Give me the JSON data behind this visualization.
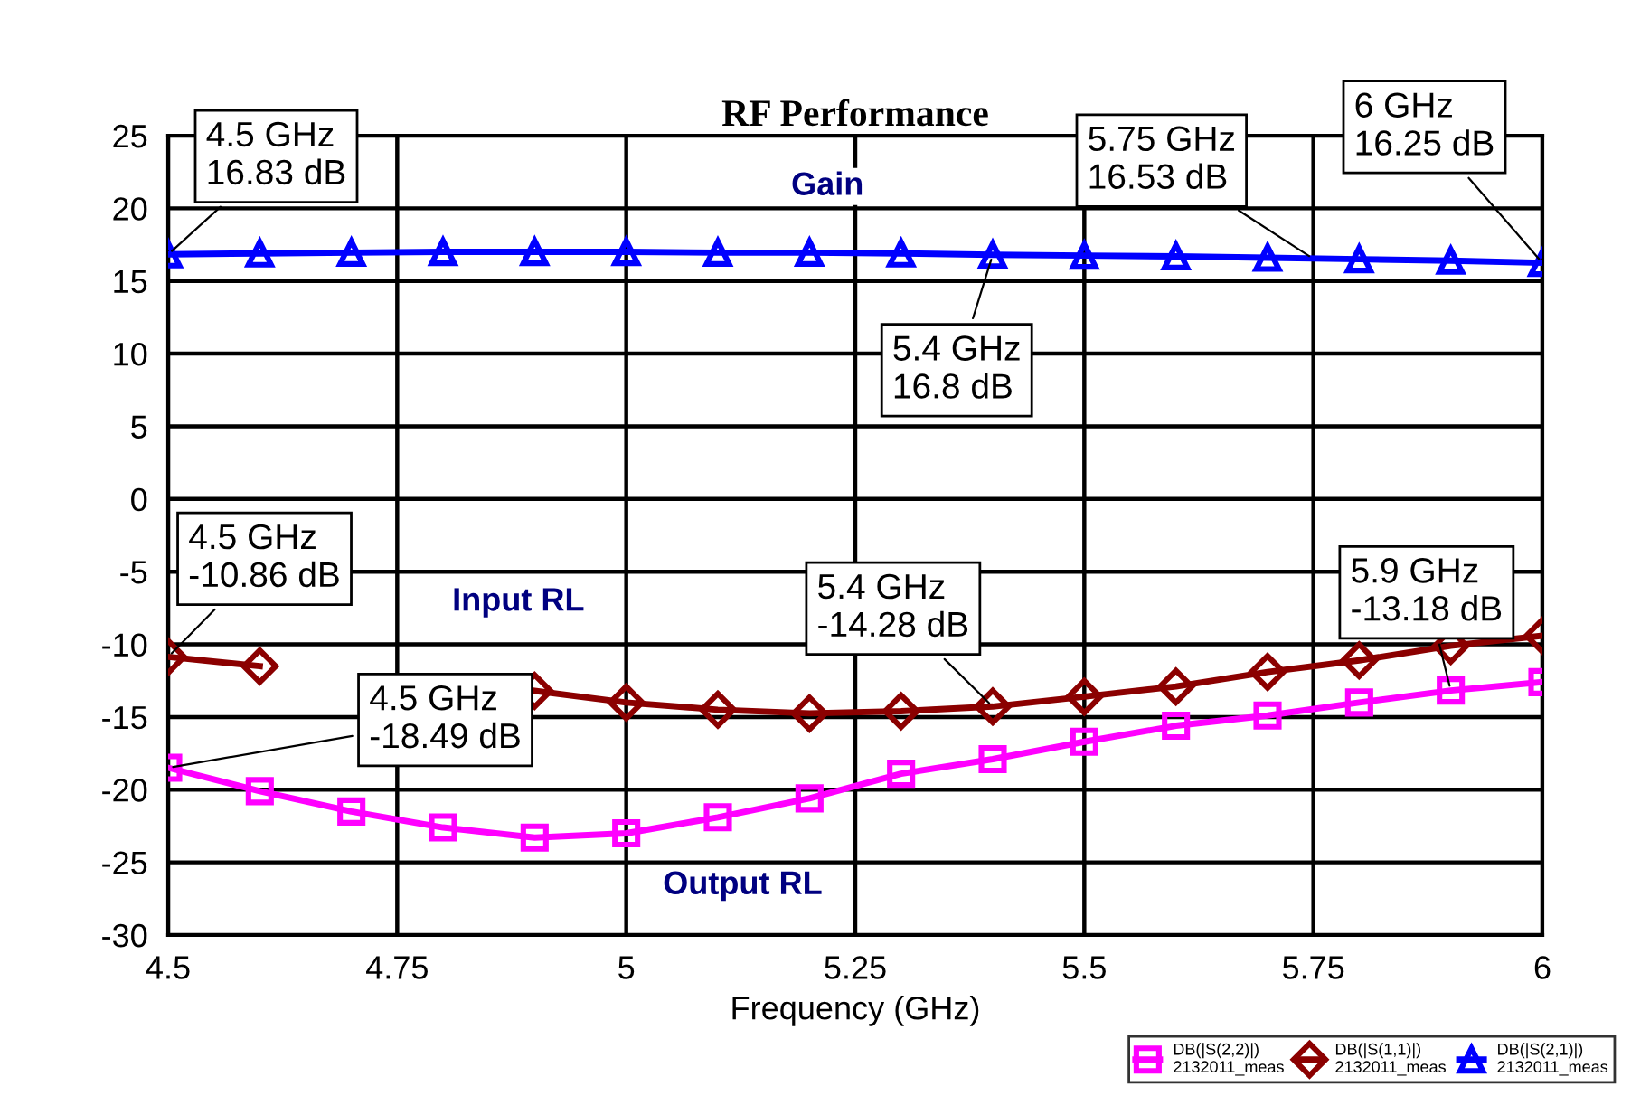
{
  "chart_data": {
    "type": "line",
    "title": "RF Performance",
    "xlabel": "Frequency (GHz)",
    "x": [
      4.5,
      4.6,
      4.7,
      4.8,
      4.9,
      5.0,
      5.1,
      5.2,
      5.3,
      5.4,
      5.5,
      5.6,
      5.7,
      5.8,
      5.9,
      6.0
    ],
    "series": [
      {
        "name": "DB(|S(2,2)|)\n2132011_meas",
        "color": "#ff00ff",
        "marker": "square",
        "values": [
          -18.49,
          -20.1,
          -21.5,
          -22.6,
          -23.3,
          -23.0,
          -21.9,
          -20.6,
          -18.9,
          -17.9,
          -16.7,
          -15.6,
          -14.9,
          -14.0,
          -13.18,
          -12.6
        ]
      },
      {
        "name": "DB(|S(1,1)|)\n2132011_meas",
        "color": "#8b0000",
        "marker": "diamond",
        "values": [
          -10.86,
          -11.5,
          null,
          null,
          -13.2,
          -14.0,
          -14.5,
          -14.75,
          -14.6,
          -14.28,
          -13.6,
          -12.9,
          -11.9,
          -11.1,
          -10.1,
          -9.4
        ]
      },
      {
        "name": "DB(|S(2,1)|)\n2132011_meas",
        "color": "#0000ff",
        "marker": "triangle",
        "values": [
          16.83,
          16.9,
          16.95,
          17.0,
          17.0,
          17.0,
          16.95,
          16.95,
          16.9,
          16.8,
          16.75,
          16.7,
          16.6,
          16.5,
          16.4,
          16.25
        ]
      }
    ],
    "xlim": [
      4.5,
      6
    ],
    "xticks": [
      4.5,
      4.75,
      5,
      5.25,
      5.5,
      5.75,
      6
    ],
    "ylim": [
      -30,
      25
    ],
    "yticks": [
      -30,
      -25,
      -20,
      -15,
      -10,
      -5,
      0,
      5,
      10,
      15,
      20,
      25
    ],
    "grid": true,
    "legend": "bottom right",
    "line_style": "solid",
    "annotations": [
      {
        "text": "4.5 GHz\n16.83 dB",
        "x": 4.5,
        "y": 16.83
      },
      {
        "text": "5.75 GHz\n16.53 dB",
        "x": 5.75,
        "y": 16.53
      },
      {
        "text": "6 GHz\n16.25 dB",
        "x": 6,
        "y": 16.25
      },
      {
        "text": "5.4 GHz\n16.8 dB",
        "x": 5.4,
        "y": 16.8
      },
      {
        "text": "4.5 GHz\n-10.86 dB",
        "x": 4.5,
        "y": -10.86
      },
      {
        "text": "5.4 GHz\n-14.28 dB",
        "x": 5.4,
        "y": -14.28
      },
      {
        "text": "5.9 GHz\n-13.18 dB",
        "x": 5.9,
        "y": -13.18
      },
      {
        "text": "4.5 GHz\n-18.49 dB",
        "x": 4.5,
        "y": -18.49
      },
      "Gain",
      "Input RL",
      "Output RL"
    ]
  }
}
